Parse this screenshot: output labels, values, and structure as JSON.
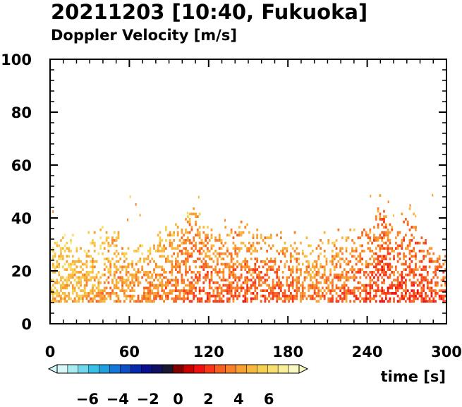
{
  "title": "20211203 [10:40, Fukuoka]",
  "subtitle": "Doppler Velocity [m/s]",
  "chart_data": {
    "type": "heatmap",
    "title": "20211203 [10:40, Fukuoka]",
    "subtitle": "Doppler Velocity [m/s]",
    "xlabel": "time [s]",
    "ylabel": "",
    "xlim": [
      0,
      300
    ],
    "ylim": [
      0,
      100
    ],
    "x_ticks": [
      "0",
      "60",
      "120",
      "180",
      "240",
      "300"
    ],
    "y_ticks": [
      "0",
      "20",
      "40",
      "60",
      "80",
      "100"
    ],
    "colorbar": {
      "range": [
        -8,
        8
      ],
      "tick_labels": [
        "−6",
        "−4",
        "−2",
        "0",
        "2",
        "4",
        "6"
      ],
      "tick_values": [
        -6,
        -4,
        -2,
        0,
        2,
        4,
        6
      ],
      "colors": [
        "#d8f8f8",
        "#a8ecf0",
        "#70d8ec",
        "#38c0e8",
        "#20a0e0",
        "#1478d8",
        "#0c50c8",
        "#0828b0",
        "#081090",
        "#101060",
        "#181830",
        "#800000",
        "#c80000",
        "#f01010",
        "#f83818",
        "#f86020",
        "#f88028",
        "#f8a030",
        "#f8b840",
        "#f8d050",
        "#f8e070",
        "#f8f098",
        "#f8f8c0"
      ]
    },
    "data_extent": {
      "height_min": 8,
      "height_typical_max": 35,
      "height_max": 49
    },
    "column_profile": {
      "time": [
        0,
        10,
        20,
        30,
        40,
        50,
        60,
        70,
        80,
        90,
        100,
        110,
        120,
        130,
        140,
        150,
        160,
        170,
        180,
        190,
        200,
        210,
        220,
        230,
        240,
        250,
        260,
        270,
        280,
        290,
        300
      ],
      "top_height": [
        28,
        33,
        30,
        31,
        33,
        35,
        28,
        27,
        31,
        33,
        38,
        42,
        36,
        33,
        35,
        34,
        33,
        32,
        31,
        30,
        30,
        31,
        32,
        33,
        36,
        45,
        34,
        41,
        33,
        27,
        25
      ],
      "mean_velocity": [
        4.6,
        4.4,
        4.3,
        4.0,
        3.8,
        3.6,
        3.7,
        3.5,
        3.3,
        3.2,
        3.0,
        2.6,
        2.8,
        3.0,
        2.7,
        2.5,
        2.6,
        2.7,
        2.8,
        3.2,
        3.4,
        3.1,
        2.9,
        2.7,
        2.5,
        2.0,
        2.3,
        2.2,
        2.1,
        2.3,
        2.4
      ]
    }
  }
}
